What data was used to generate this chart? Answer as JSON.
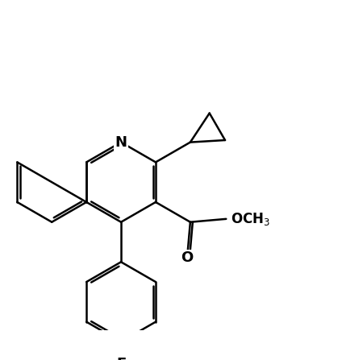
{
  "bg_color": "#ffffff",
  "line_color": "#000000",
  "line_width": 1.8,
  "fig_width": 4.24,
  "fig_height": 4.47,
  "dpi": 100
}
